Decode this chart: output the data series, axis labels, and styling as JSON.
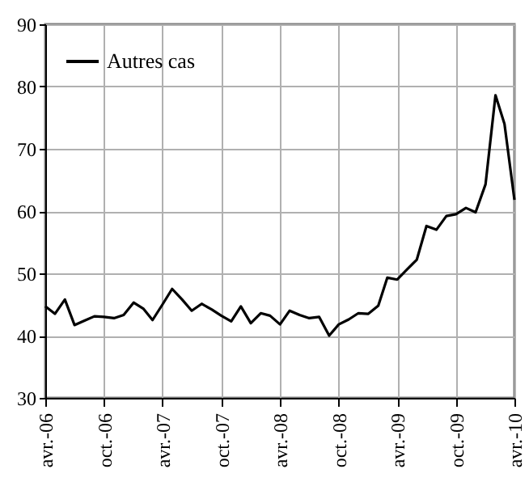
{
  "chart_data": {
    "type": "line",
    "x": [
      "2006-04",
      "2006-05",
      "2006-06",
      "2006-07",
      "2006-08",
      "2006-09",
      "2006-10",
      "2006-11",
      "2006-12",
      "2007-01",
      "2007-02",
      "2007-03",
      "2007-04",
      "2007-05",
      "2007-06",
      "2007-07",
      "2007-08",
      "2007-09",
      "2007-10",
      "2007-11",
      "2007-12",
      "2008-01",
      "2008-02",
      "2008-03",
      "2008-04",
      "2008-05",
      "2008-06",
      "2008-07",
      "2008-08",
      "2008-09",
      "2008-10",
      "2008-11",
      "2008-12",
      "2009-01",
      "2009-02",
      "2009-03",
      "2009-04",
      "2009-05",
      "2009-06",
      "2009-07",
      "2009-08",
      "2009-09",
      "2009-10",
      "2009-11",
      "2009-12",
      "2010-01",
      "2010-02",
      "2010-03",
      "2010-04"
    ],
    "series": [
      {
        "name": "Autres cas",
        "color": "#000000",
        "values": [
          44.7,
          43.5,
          45.8,
          41.7,
          42.4,
          43.1,
          43.0,
          42.8,
          43.3,
          45.3,
          44.3,
          42.5,
          45.0,
          47.5,
          45.8,
          44.0,
          45.1,
          44.2,
          43.2,
          42.3,
          44.7,
          42.0,
          43.6,
          43.2,
          41.8,
          44.0,
          43.3,
          42.8,
          43.0,
          40.0,
          41.8,
          42.6,
          43.6,
          43.5,
          44.8,
          49.3,
          49.0,
          50.6,
          52.2,
          57.6,
          57.0,
          59.2,
          59.5,
          60.5,
          59.8,
          64.3,
          78.6,
          74.0,
          61.8
        ]
      }
    ],
    "xlim": [
      "2006-04",
      "2010-04"
    ],
    "xticks": [
      {
        "value": "2006-04",
        "label": "avr.-06"
      },
      {
        "value": "2006-10",
        "label": "oct.-06"
      },
      {
        "value": "2007-04",
        "label": "avr.-07"
      },
      {
        "value": "2007-10",
        "label": "oct.-07"
      },
      {
        "value": "2008-04",
        "label": "avr.-08"
      },
      {
        "value": "2008-10",
        "label": "oct.-08"
      },
      {
        "value": "2009-04",
        "label": "avr.-09"
      },
      {
        "value": "2009-10",
        "label": "oct.-09"
      },
      {
        "value": "2010-04",
        "label": "avr.-10"
      }
    ],
    "ylim": [
      30,
      90
    ],
    "yticks": [
      30,
      40,
      50,
      60,
      70,
      80,
      90
    ],
    "grid": true,
    "legend": "top left",
    "line_style": "solid"
  }
}
